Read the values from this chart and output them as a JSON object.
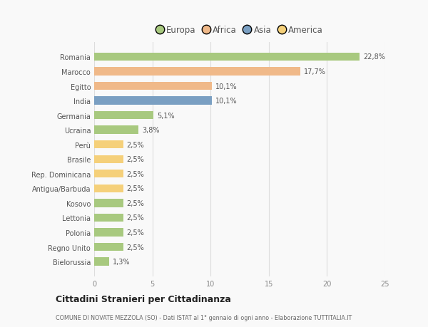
{
  "countries": [
    "Romania",
    "Marocco",
    "Egitto",
    "India",
    "Germania",
    "Ucraina",
    "Perù",
    "Brasile",
    "Rep. Dominicana",
    "Antigua/Barbuda",
    "Kosovo",
    "Lettonia",
    "Polonia",
    "Regno Unito",
    "Bielorussia"
  ],
  "values": [
    22.8,
    17.7,
    10.1,
    10.1,
    5.1,
    3.8,
    2.5,
    2.5,
    2.5,
    2.5,
    2.5,
    2.5,
    2.5,
    2.5,
    1.3
  ],
  "labels": [
    "22,8%",
    "17,7%",
    "10,1%",
    "10,1%",
    "5,1%",
    "3,8%",
    "2,5%",
    "2,5%",
    "2,5%",
    "2,5%",
    "2,5%",
    "2,5%",
    "2,5%",
    "2,5%",
    "1,3%"
  ],
  "colors": [
    "#a8c97f",
    "#f0b989",
    "#f0b989",
    "#7a9fc2",
    "#a8c97f",
    "#a8c97f",
    "#f5d07a",
    "#f5d07a",
    "#f5d07a",
    "#f5d07a",
    "#a8c97f",
    "#a8c97f",
    "#a8c97f",
    "#a8c97f",
    "#a8c97f"
  ],
  "legend_labels": [
    "Europa",
    "Africa",
    "Asia",
    "America"
  ],
  "legend_colors": [
    "#a8c97f",
    "#f0b989",
    "#7a9fc2",
    "#f5d07a"
  ],
  "xlim": [
    0,
    25
  ],
  "xticks": [
    0,
    5,
    10,
    15,
    20,
    25
  ],
  "title": "Cittadini Stranieri per Cittadinanza",
  "subtitle": "COMUNE DI NOVATE MEZZOLA (SO) - Dati ISTAT al 1° gennaio di ogni anno - Elaborazione TUTTITALIA.IT",
  "background_color": "#f9f9f9",
  "bar_height": 0.55,
  "grid_color": "#dddddd",
  "label_color": "#555555",
  "ytick_color": "#555555"
}
